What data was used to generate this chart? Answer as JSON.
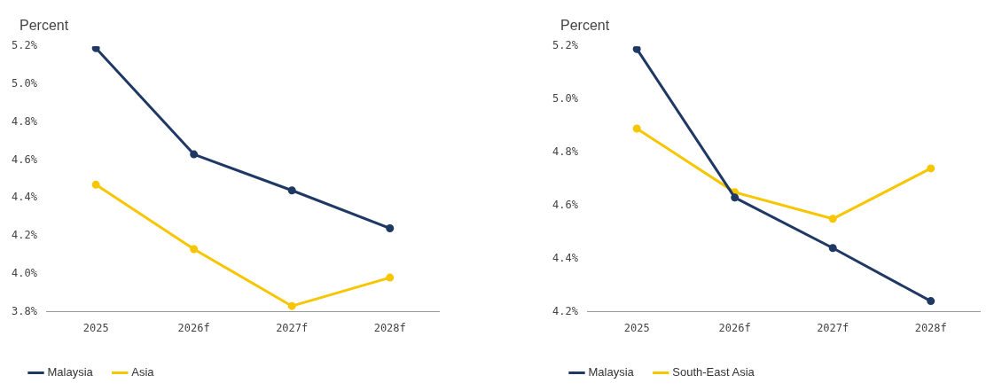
{
  "chart_data": [
    {
      "type": "line",
      "ylabel": "Percent",
      "categories": [
        "2025",
        "2026f",
        "2027f",
        "2028f"
      ],
      "series": [
        {
          "name": "Malaysia",
          "color": "#1f3864",
          "values": [
            5.19,
            4.63,
            4.44,
            4.24
          ]
        },
        {
          "name": "Asia",
          "color": "#f7c600",
          "values": [
            4.47,
            4.13,
            3.83,
            3.98
          ]
        }
      ],
      "ylim": [
        3.8,
        5.2
      ],
      "yticks": [
        {
          "value": 3.8,
          "label": "3.8%"
        },
        {
          "value": 4.0,
          "label": "4.0%"
        },
        {
          "value": 4.2,
          "label": "4.2%"
        },
        {
          "value": 4.4,
          "label": "4.4%"
        },
        {
          "value": 4.6,
          "label": "4.6%"
        },
        {
          "value": 4.8,
          "label": "4.8%"
        },
        {
          "value": 5.0,
          "label": "5.0%"
        },
        {
          "value": 5.2,
          "label": "5.2%"
        }
      ],
      "grid": false,
      "legend": "bottom left",
      "marker": "circle",
      "line_style": "solid"
    },
    {
      "type": "line",
      "ylabel": "Percent",
      "categories": [
        "2025",
        "2026f",
        "2027f",
        "2028f"
      ],
      "series": [
        {
          "name": "Malaysia",
          "color": "#1f3864",
          "values": [
            5.19,
            4.63,
            4.44,
            4.24
          ]
        },
        {
          "name": "South-East Asia",
          "color": "#f7c600",
          "values": [
            4.89,
            4.65,
            4.55,
            4.74
          ]
        }
      ],
      "ylim": [
        4.2,
        5.2
      ],
      "yticks": [
        {
          "value": 4.2,
          "label": "4.2%"
        },
        {
          "value": 4.4,
          "label": "4.4%"
        },
        {
          "value": 4.6,
          "label": "4.6%"
        },
        {
          "value": 4.8,
          "label": "4.8%"
        },
        {
          "value": 5.0,
          "label": "5.0%"
        },
        {
          "value": 5.2,
          "label": "5.2%"
        }
      ],
      "grid": false,
      "legend": "bottom left",
      "marker": "circle",
      "line_style": "solid"
    }
  ]
}
